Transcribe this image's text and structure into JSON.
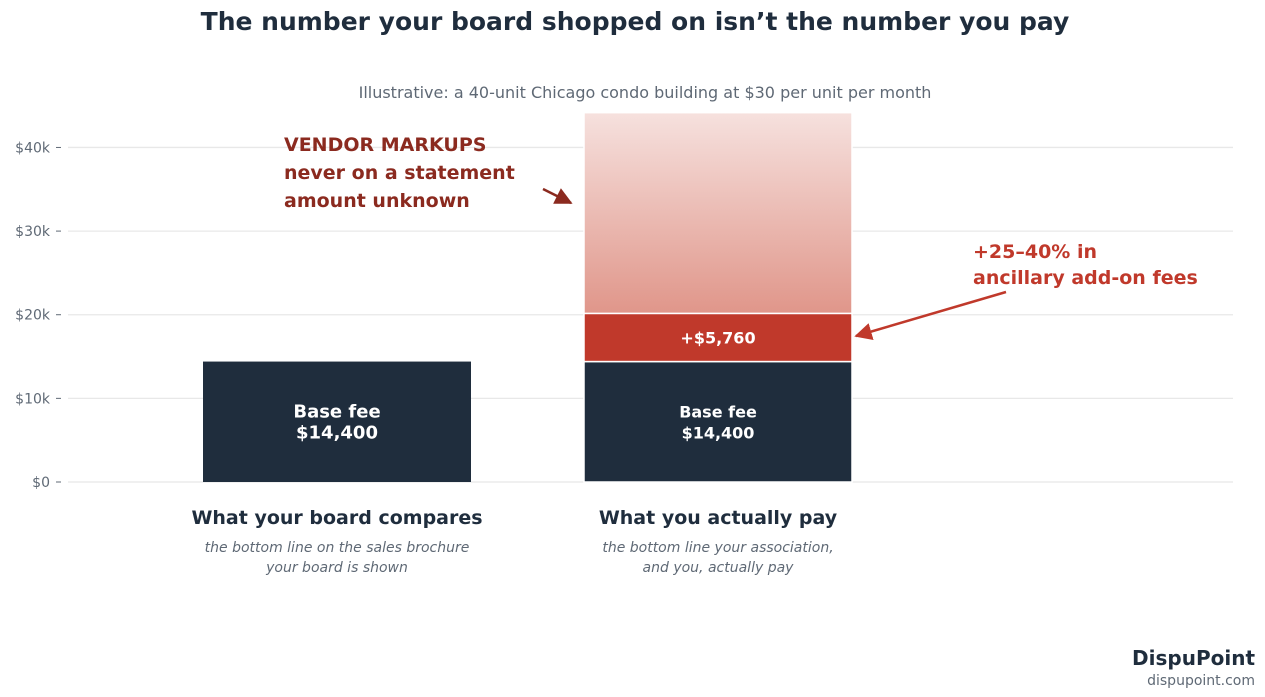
{
  "chart_data": {
    "type": "bar",
    "stacked": true,
    "title": "The number your board shopped on isn’t the number you pay",
    "subtitle": "Illustrative: a 40-unit Chicago condo building at $30 per unit per month",
    "ylim": [
      0,
      44000
    ],
    "y_ticks": [
      {
        "value": 0,
        "label": "$0"
      },
      {
        "value": 10000,
        "label": "$10k"
      },
      {
        "value": 20000,
        "label": "$20k"
      },
      {
        "value": 30000,
        "label": "$30k"
      },
      {
        "value": 40000,
        "label": "$40k"
      }
    ],
    "grid": true,
    "categories": [
      {
        "label": "What your board compares",
        "sublabel": [
          "the bottom line on the sales brochure",
          "your board is shown"
        ]
      },
      {
        "label": "What you actually pay",
        "sublabel": [
          "the bottom line your association,",
          "and you, actually pay"
        ]
      }
    ],
    "series": [
      {
        "name": "Base fee",
        "color": "#1f2d3d",
        "values": [
          14400,
          14400
        ],
        "labels": [
          [
            "Base fee",
            "$14,400"
          ],
          [
            "Base fee",
            "$14,400"
          ]
        ]
      },
      {
        "color": "#c0392b",
        "values": [
          0,
          5760
        ],
        "labels": [
          null,
          [
            "+$5,760"
          ]
        ]
      },
      {
        "color_from": "#e0968a",
        "color_to": "#f6e1de",
        "values": [
          0,
          24000
        ],
        "labels": [
          null,
          null
        ]
      }
    ],
    "annotations": [
      {
        "lines": [
          "VENDOR MARKUPS",
          "never on a statement",
          "amount unknown"
        ],
        "color": "#8b2a1f"
      },
      {
        "lines": [
          "+25–40% in",
          "ancillary add-on fees"
        ],
        "color": "#c0392b"
      }
    ]
  },
  "brand": {
    "name": "DispuPoint",
    "url": "dispupoint.com"
  }
}
